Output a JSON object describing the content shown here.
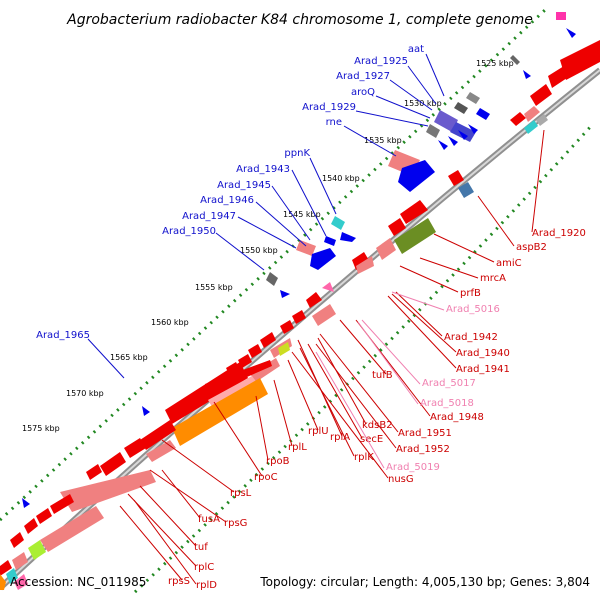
{
  "title": "Agrobacterium radiobacter K84 chromosome 1, complete genome",
  "accession": "Accession: NC_011985",
  "topology": "Topology: circular; Length: 4,005,130 bp; Genes: 3,804",
  "colors": {
    "blue_label": "#1010cc",
    "red_label": "#cc0000",
    "pink_label": "#f080b0",
    "gene_red": "#ee0000",
    "gene_pink": "#f08080",
    "gene_blue": "#0000ee",
    "gene_orange": "#ff8c00",
    "backbone": "#909090",
    "dots": "#228822"
  },
  "scale": [
    "1525 kbp",
    "1530 kbp",
    "1535 kbp",
    "1540 kbp",
    "1545 kbp",
    "1550 kbp",
    "1555 kbp",
    "1560 kbp",
    "1565 kbp",
    "1570 kbp",
    "1575 kbp"
  ],
  "labels_blue": [
    "aat",
    "Arad_1925",
    "Arad_1927",
    "aroQ",
    "Arad_1929",
    "rne",
    "ppnK",
    "Arad_1943",
    "Arad_1945",
    "Arad_1946",
    "Arad_1947",
    "Arad_1950",
    "Arad_1965"
  ],
  "labels_red": [
    "Arad_1920",
    "aspB2",
    "amiC",
    "mrcA",
    "prfB",
    "Arad_1942",
    "Arad_1940",
    "Arad_1941",
    "tufB",
    "Arad_1948",
    "Arad_1951",
    "kdsB2",
    "Arad_1952",
    "secE",
    "rplA",
    "rplK",
    "nusG",
    "rplU",
    "rplL",
    "rpoB",
    "rpoC",
    "rpsL",
    "rpsG",
    "fusA",
    "tuf",
    "rplC",
    "rpsS",
    "rplD"
  ],
  "labels_pink": [
    "Arad_5016",
    "Arad_5017",
    "Arad_5018",
    "Arad_5019"
  ]
}
